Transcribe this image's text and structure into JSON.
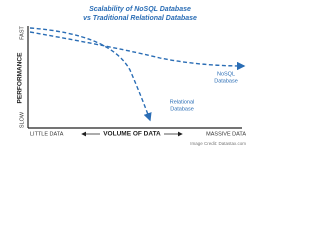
{
  "title": {
    "line1": "Scalability of NoSQL Database",
    "line2": "vs Traditional Relational Database"
  },
  "y_axis": {
    "label": "PERFORMANCE",
    "top": "FAST",
    "bottom": "SLOW"
  },
  "x_axis": {
    "label": "VOLUME OF DATA",
    "left": "LITTLE DATA",
    "right": "MASSIVE DATA"
  },
  "curves": [
    {
      "line1": "NoSQL",
      "line2": "Database"
    },
    {
      "line1": "Relational",
      "line2": "Database"
    }
  ],
  "credit": "Image Credit: Datastax.com"
}
